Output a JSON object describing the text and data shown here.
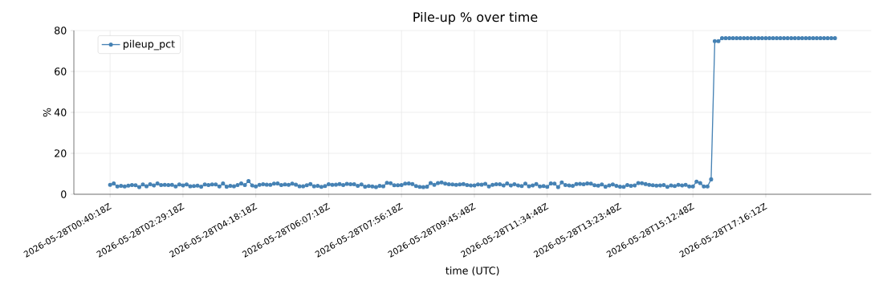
{
  "chart_data": {
    "type": "line",
    "title": "Pile-up % over time",
    "xlabel": "time (UTC)",
    "ylabel": "%",
    "categories": [
      "2026-05-28T00:40:18Z",
      null,
      null,
      null,
      null,
      null,
      null,
      null,
      null,
      null,
      null,
      null,
      null,
      null,
      null,
      null,
      null,
      null,
      null,
      null,
      "2026-05-28T02:29:18Z",
      null,
      null,
      null,
      null,
      null,
      null,
      null,
      null,
      null,
      null,
      null,
      null,
      null,
      null,
      null,
      null,
      null,
      null,
      null,
      "2026-05-28T04:18:18Z",
      null,
      null,
      null,
      null,
      null,
      null,
      null,
      null,
      null,
      null,
      null,
      null,
      null,
      null,
      null,
      null,
      null,
      null,
      null,
      "2026-05-28T06:07:18Z",
      null,
      null,
      null,
      null,
      null,
      null,
      null,
      null,
      null,
      null,
      null,
      null,
      null,
      null,
      null,
      null,
      null,
      null,
      null,
      "2026-05-28T07:56:18Z",
      null,
      null,
      null,
      null,
      null,
      null,
      null,
      null,
      null,
      null,
      null,
      null,
      null,
      null,
      null,
      null,
      null,
      null,
      null,
      "2026-05-28T09:45:48Z",
      null,
      null,
      null,
      null,
      null,
      null,
      null,
      null,
      null,
      null,
      null,
      null,
      null,
      null,
      null,
      null,
      null,
      null,
      null,
      "2026-05-28T11:34:48Z",
      null,
      null,
      null,
      null,
      null,
      null,
      null,
      null,
      null,
      null,
      null,
      null,
      null,
      null,
      null,
      null,
      null,
      null,
      null,
      "2026-05-28T13:23:48Z",
      null,
      null,
      null,
      null,
      null,
      null,
      null,
      null,
      null,
      null,
      null,
      null,
      null,
      null,
      null,
      null,
      null,
      null,
      null,
      "2026-05-28T15:12:48Z",
      null,
      null,
      null,
      null,
      null,
      null,
      null,
      null,
      null,
      null,
      null,
      null,
      null,
      null,
      null,
      null,
      null,
      null,
      null,
      "2026-05-28T17:16:12Z",
      null,
      null,
      null,
      null,
      null,
      null,
      null,
      null,
      null,
      null,
      null,
      null,
      null,
      null,
      null,
      null,
      null,
      null,
      null
    ],
    "series": [
      {
        "name": "pileup_pct",
        "color": "#4682b4",
        "values": [
          4.6,
          5.3,
          3.8,
          4.1,
          3.8,
          4.2,
          4.5,
          4.4,
          3.5,
          4.8,
          3.9,
          4.9,
          4.3,
          5.3,
          4.5,
          4.6,
          4.5,
          4.6,
          3.8,
          4.8,
          4.3,
          4.8,
          3.9,
          4.0,
          4.2,
          3.7,
          4.8,
          4.5,
          4.8,
          4.8,
          3.8,
          5.3,
          3.7,
          4.1,
          3.9,
          4.5,
          5.3,
          4.5,
          6.5,
          4.3,
          3.8,
          4.6,
          4.9,
          4.7,
          4.6,
          5.2,
          5.3,
          4.5,
          4.8,
          4.6,
          5.2,
          4.7,
          3.9,
          3.9,
          4.4,
          5.0,
          3.9,
          4.1,
          3.6,
          4.0,
          4.9,
          4.6,
          4.7,
          5.0,
          4.5,
          5.1,
          4.9,
          4.9,
          4.1,
          4.8,
          3.7,
          4.0,
          3.8,
          3.5,
          4.1,
          3.9,
          5.6,
          5.4,
          4.4,
          4.4,
          4.5,
          5.2,
          5.3,
          5.0,
          4.0,
          3.6,
          3.5,
          3.7,
          5.5,
          4.6,
          5.5,
          5.8,
          5.2,
          4.9,
          4.8,
          4.6,
          4.8,
          5.0,
          4.5,
          4.3,
          4.3,
          4.8,
          4.7,
          5.1,
          3.8,
          4.6,
          4.9,
          4.9,
          4.3,
          5.3,
          4.3,
          4.9,
          4.3,
          4.0,
          5.2,
          3.9,
          4.3,
          5.0,
          3.8,
          4.0,
          3.6,
          5.3,
          5.2,
          3.5,
          5.8,
          4.5,
          4.3,
          4.1,
          5.0,
          5.1,
          4.9,
          5.3,
          5.2,
          4.4,
          4.2,
          4.8,
          3.7,
          4.3,
          4.8,
          4.1,
          3.7,
          3.6,
          4.5,
          4.1,
          4.3,
          5.5,
          5.4,
          5.0,
          4.6,
          4.4,
          4.2,
          4.3,
          4.5,
          3.6,
          4.3,
          4.0,
          4.6,
          4.3,
          4.6,
          3.8,
          3.8,
          6.2,
          5.5,
          3.8,
          3.8,
          7.3,
          74.8,
          74.8,
          76.3,
          76.3,
          76.3,
          76.3,
          76.3,
          76.3,
          76.3,
          76.3,
          76.3,
          76.3,
          76.3,
          76.3,
          76.3,
          76.3,
          76.3,
          76.3,
          76.3,
          76.3,
          76.3,
          76.3,
          76.3,
          76.3,
          76.3,
          76.3,
          76.3,
          76.3,
          76.3,
          76.3,
          76.3,
          76.3,
          76.3,
          76.3
        ]
      }
    ],
    "ylim": [
      0,
      80
    ],
    "yticks": [
      0,
      20,
      40,
      60,
      80
    ],
    "grid": true,
    "legend": "top left",
    "marker": "circle",
    "line_style": "solid"
  }
}
